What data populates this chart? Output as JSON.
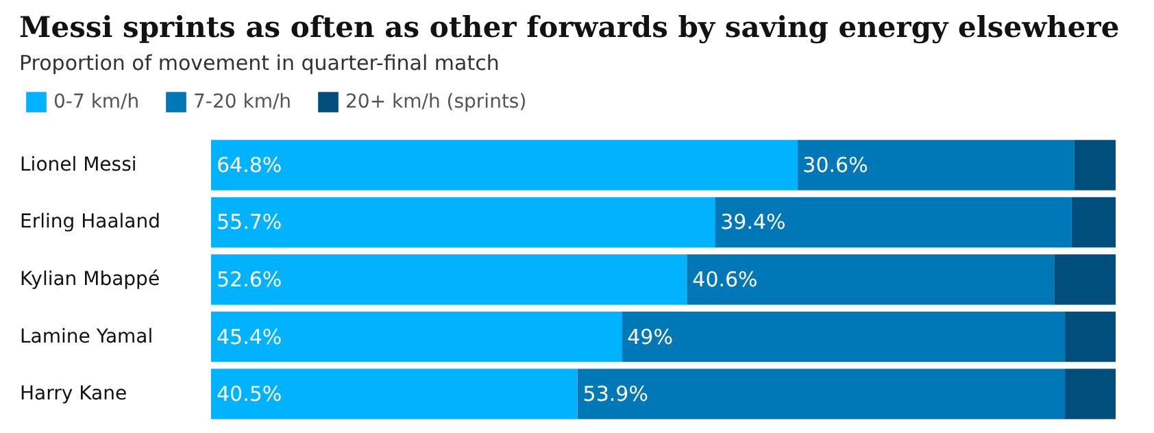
{
  "chart_data": {
    "type": "bar",
    "orientation": "horizontal",
    "stacked": true,
    "title": "Messi sprints as often as other forwards by saving energy elsewhere",
    "subtitle": "Proportion of movement in quarter-final match",
    "categories": [
      "Lionel Messi",
      "Erling Haaland",
      "Kylian Mbappé",
      "Lamine Yamal",
      "Harry Kane"
    ],
    "series": [
      {
        "name": "0-7 km/h",
        "color": "#00b2ff",
        "values": [
          64.8,
          55.7,
          52.6,
          45.4,
          40.5
        ],
        "value_labels": [
          "64.8%",
          "55.7%",
          "52.6%",
          "45.4%",
          "40.5%"
        ]
      },
      {
        "name": "7-20 km/h",
        "color": "#0077b6",
        "values": [
          30.6,
          39.4,
          40.6,
          49,
          53.9
        ],
        "value_labels": [
          "30.6%",
          "39.4%",
          "40.6%",
          "49%",
          "53.9%"
        ]
      },
      {
        "name": "20+ km/h (sprints)",
        "color": "#004e7c",
        "values": [
          4.6,
          4.9,
          6.8,
          5.6,
          5.6
        ],
        "value_labels": [
          null,
          null,
          null,
          null,
          null
        ]
      }
    ],
    "xlim": [
      0,
      100
    ],
    "tick_labels": "y",
    "legend": "top left"
  }
}
